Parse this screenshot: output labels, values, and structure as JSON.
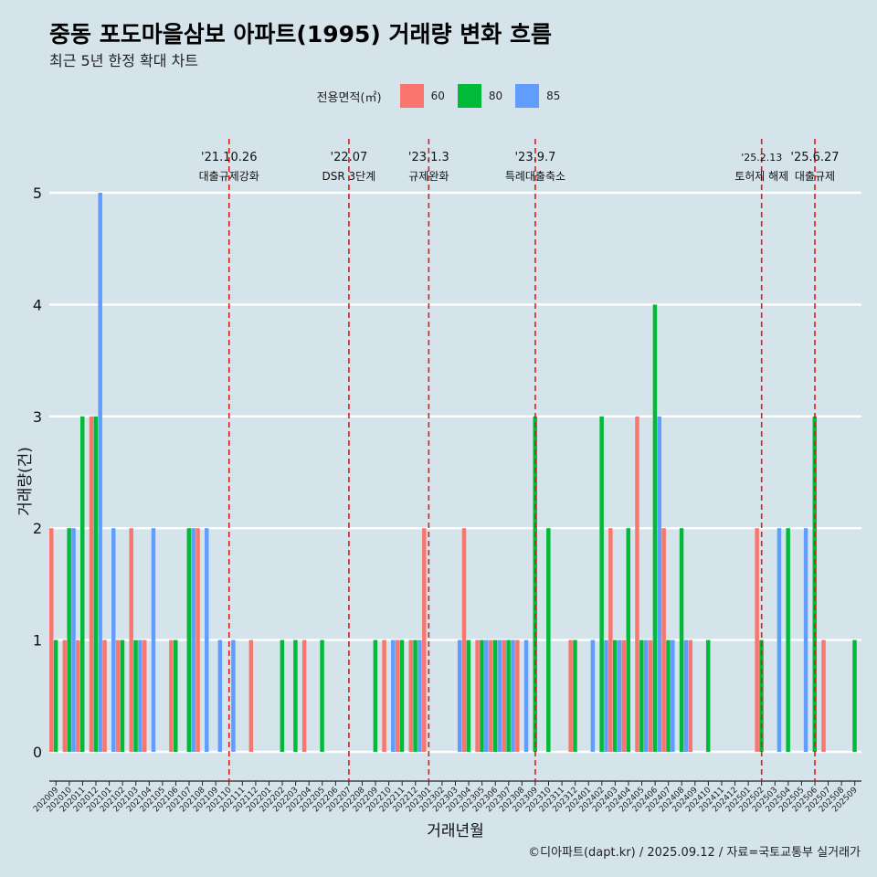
{
  "title": "중동 포도마을삼보 아파트(1995) 거래량 변화 흐름",
  "subtitle": "최근 5년 한정 확대 차트",
  "caption": "©디아파트(dapt.kr) / 2025.09.12 / 자료=국토교통부 실거래가",
  "legend": {
    "title": "전용면적(㎡)",
    "items": [
      {
        "label": "60",
        "color": "#f8766d"
      },
      {
        "label": "80",
        "color": "#00ba38"
      },
      {
        "label": "85",
        "color": "#619cff"
      }
    ]
  },
  "chart_data": {
    "type": "bar",
    "xlabel": "거래년월",
    "ylabel": "거래량(건)",
    "ylim": [
      0,
      5
    ],
    "yticks": [
      0,
      1,
      2,
      3,
      4,
      5
    ],
    "grid": true,
    "legend_position": "top",
    "categories": [
      "202009",
      "202010",
      "202011",
      "202012",
      "202101",
      "202102",
      "202103",
      "202104",
      "202105",
      "202106",
      "202107",
      "202108",
      "202109",
      "202110",
      "202111",
      "202112",
      "202201",
      "202202",
      "202203",
      "202204",
      "202205",
      "202206",
      "202207",
      "202208",
      "202209",
      "202210",
      "202211",
      "202212",
      "202301",
      "202302",
      "202303",
      "202304",
      "202305",
      "202306",
      "202307",
      "202308",
      "202309",
      "202310",
      "202311",
      "202312",
      "202401",
      "202402",
      "202403",
      "202404",
      "202405",
      "202406",
      "202407",
      "202408",
      "202409",
      "202410",
      "202411",
      "202412",
      "202501",
      "202502",
      "202503",
      "202504",
      "202505",
      "202506",
      "202507",
      "202508",
      "202509"
    ],
    "series": [
      {
        "name": "60",
        "color": "#f8766d",
        "values": [
          2,
          1,
          1,
          3,
          1,
          1,
          2,
          1,
          0,
          1,
          0,
          2,
          0,
          0,
          0,
          1,
          0,
          0,
          0,
          1,
          0,
          0,
          0,
          0,
          0,
          1,
          1,
          1,
          2,
          0,
          0,
          2,
          1,
          1,
          1,
          1,
          0,
          0,
          0,
          1,
          0,
          0,
          2,
          1,
          3,
          1,
          2,
          0,
          1,
          0,
          0,
          0,
          0,
          2,
          0,
          0,
          0,
          0,
          1,
          0,
          0
        ]
      },
      {
        "name": "80",
        "color": "#00ba38",
        "values": [
          1,
          2,
          3,
          3,
          0,
          1,
          1,
          0,
          0,
          1,
          2,
          0,
          0,
          0,
          0,
          0,
          0,
          1,
          1,
          0,
          1,
          0,
          0,
          0,
          1,
          0,
          1,
          1,
          0,
          0,
          0,
          1,
          1,
          1,
          1,
          0,
          3,
          2,
          0,
          1,
          0,
          3,
          1,
          2,
          1,
          4,
          1,
          2,
          0,
          1,
          0,
          0,
          0,
          1,
          0,
          2,
          0,
          3,
          0,
          0,
          1
        ]
      },
      {
        "name": "85",
        "color": "#619cff",
        "values": [
          0,
          2,
          0,
          5,
          2,
          0,
          1,
          2,
          0,
          0,
          2,
          2,
          1,
          1,
          0,
          0,
          0,
          0,
          0,
          0,
          0,
          0,
          0,
          0,
          0,
          1,
          0,
          1,
          0,
          0,
          1,
          0,
          1,
          1,
          1,
          1,
          0,
          0,
          0,
          0,
          1,
          1,
          1,
          0,
          1,
          3,
          1,
          1,
          0,
          0,
          0,
          0,
          0,
          0,
          2,
          0,
          2,
          0,
          0,
          0,
          0
        ]
      }
    ],
    "annotations": [
      {
        "date": "'21.10.26",
        "label": "대출규제강화",
        "at": "202110"
      },
      {
        "date": "'22.07",
        "label": "DSR 3단계",
        "at": "202207"
      },
      {
        "date": "'23.1.3",
        "label": "규제완화",
        "at": "202301"
      },
      {
        "date": "'23.9.7",
        "label": "특례대출축소",
        "at": "202309"
      },
      {
        "date": "'25.2.13",
        "label": "토허제 해제",
        "at": "202502"
      },
      {
        "date": "'25.6.27",
        "label": "대출규제",
        "at": "202506"
      }
    ],
    "annotation_color": "#e41a1c"
  }
}
